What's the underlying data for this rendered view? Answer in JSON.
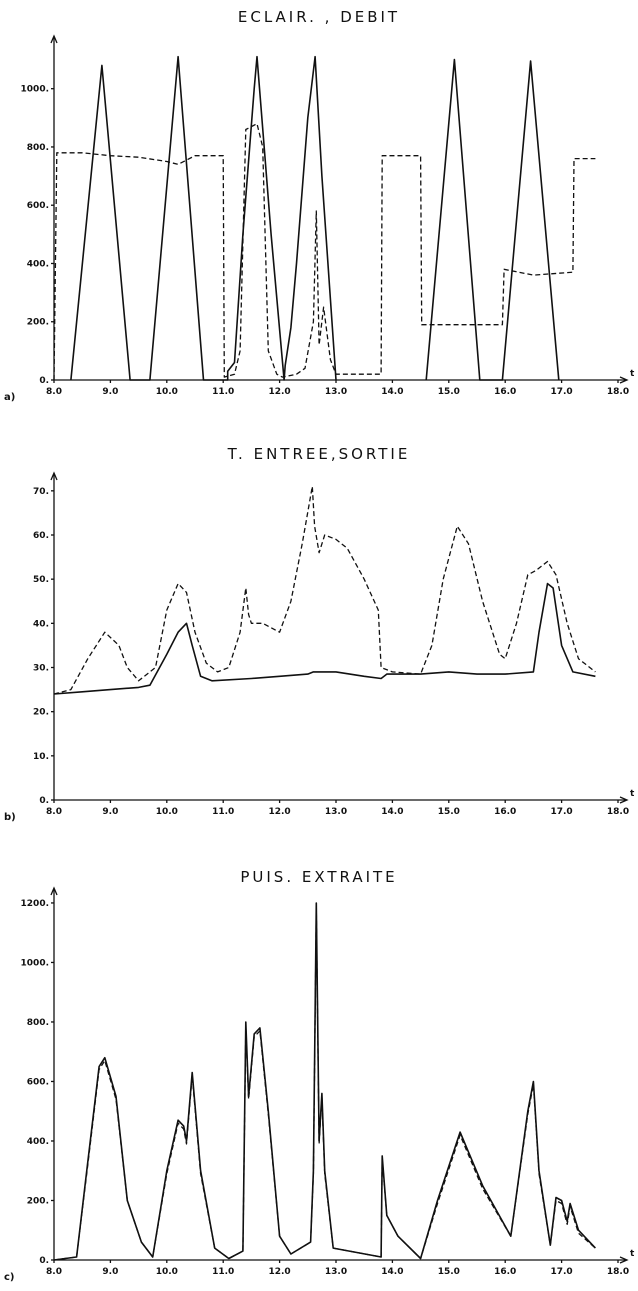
{
  "chart_data": [
    {
      "type": "line",
      "panel_label": "a)",
      "title": "ECLAIR. , DEBIT",
      "xlabel": "t",
      "ylabel": "",
      "xlim": [
        8,
        18
      ],
      "ylim": [
        0,
        1150
      ],
      "xticks": [
        "8.0",
        "9.0",
        "10.0",
        "11.0",
        "12.0",
        "13.0",
        "14.0",
        "15.0",
        "16.0",
        "17.0",
        "18.0"
      ],
      "yticks": [
        {
          "value": 0,
          "label": "0."
        },
        {
          "value": 200,
          "label": "200."
        },
        {
          "value": 400,
          "label": "400."
        },
        {
          "value": 600,
          "label": "600."
        },
        {
          "value": 800,
          "label": "800."
        },
        {
          "value": 1000,
          "label": "1000."
        }
      ],
      "series": [
        {
          "style": "solid",
          "points": [
            [
              8.3,
              0
            ],
            [
              8.85,
              1080
            ],
            [
              9.35,
              0
            ],
            [
              9.7,
              0
            ],
            [
              10.2,
              1110
            ],
            [
              10.65,
              0
            ],
            [
              11.08,
              0
            ],
            [
              11.08,
              30
            ],
            [
              11.2,
              60
            ],
            [
              11.35,
              500
            ],
            [
              11.55,
              1000
            ],
            [
              11.6,
              1110
            ],
            [
              11.85,
              500
            ],
            [
              12.08,
              0
            ],
            [
              12.1,
              50
            ],
            [
              12.2,
              180
            ],
            [
              12.3,
              400
            ],
            [
              12.5,
              900
            ],
            [
              12.63,
              1110
            ],
            [
              12.75,
              700
            ],
            [
              13.0,
              0
            ]
          ]
        },
        {
          "style": "solid",
          "points": [
            [
              14.6,
              0
            ],
            [
              15.1,
              1100
            ],
            [
              15.55,
              0
            ],
            [
              15.95,
              0
            ],
            [
              16.45,
              1095
            ],
            [
              16.95,
              0
            ]
          ]
        },
        {
          "style": "dashed",
          "points": [
            [
              8.0,
              0
            ],
            [
              8.05,
              780
            ],
            [
              8.5,
              780
            ],
            [
              9.0,
              770
            ],
            [
              9.5,
              765
            ],
            [
              10.0,
              750
            ],
            [
              10.2,
              740
            ],
            [
              10.5,
              770
            ],
            [
              11.0,
              770
            ],
            [
              11.02,
              10
            ],
            [
              11.2,
              20
            ],
            [
              11.3,
              100
            ],
            [
              11.4,
              860
            ],
            [
              11.6,
              880
            ],
            [
              11.7,
              800
            ],
            [
              11.8,
              100
            ],
            [
              11.95,
              20
            ],
            [
              12.05,
              10
            ],
            [
              12.3,
              20
            ],
            [
              12.45,
              40
            ],
            [
              12.6,
              200
            ],
            [
              12.65,
              580
            ],
            [
              12.7,
              120
            ],
            [
              12.78,
              250
            ],
            [
              12.9,
              70
            ],
            [
              13.0,
              20
            ],
            [
              13.8,
              20
            ],
            [
              13.82,
              770
            ],
            [
              14.5,
              770
            ],
            [
              14.52,
              190
            ],
            [
              15.0,
              190
            ],
            [
              15.95,
              190
            ],
            [
              15.98,
              380
            ],
            [
              16.5,
              360
            ],
            [
              17.2,
              370
            ],
            [
              17.22,
              760
            ],
            [
              17.6,
              760
            ]
          ]
        }
      ]
    },
    {
      "type": "line",
      "panel_label": "b)",
      "title": "T. ENTREE,SORTIE",
      "xlabel": "t",
      "ylabel": "",
      "xlim": [
        8,
        18
      ],
      "ylim": [
        0,
        72
      ],
      "xticks": [
        "8.0",
        "9.0",
        "10.0",
        "11.0",
        "12.0",
        "13.0",
        "14.0",
        "15.0",
        "16.0",
        "17.0",
        "18.0"
      ],
      "yticks": [
        {
          "value": 0,
          "label": "0."
        },
        {
          "value": 10,
          "label": "10."
        },
        {
          "value": 20,
          "label": "20."
        },
        {
          "value": 30,
          "label": "30."
        },
        {
          "value": 40,
          "label": "40."
        },
        {
          "value": 50,
          "label": "50."
        },
        {
          "value": 60,
          "label": "60."
        },
        {
          "value": 70,
          "label": "70."
        }
      ],
      "series": [
        {
          "style": "solid",
          "points": [
            [
              8.0,
              24
            ],
            [
              8.5,
              24.5
            ],
            [
              9.0,
              25
            ],
            [
              9.5,
              25.5
            ],
            [
              9.7,
              26
            ],
            [
              10.0,
              33
            ],
            [
              10.2,
              38
            ],
            [
              10.35,
              40
            ],
            [
              10.45,
              35
            ],
            [
              10.6,
              28
            ],
            [
              10.8,
              27
            ],
            [
              11.5,
              27.5
            ],
            [
              12.0,
              28
            ],
            [
              12.5,
              28.5
            ],
            [
              12.6,
              29
            ],
            [
              13.0,
              29
            ],
            [
              13.5,
              28
            ],
            [
              13.8,
              27.5
            ],
            [
              13.9,
              28.5
            ],
            [
              14.5,
              28.5
            ],
            [
              15.0,
              29
            ],
            [
              15.5,
              28.5
            ],
            [
              16.0,
              28.5
            ],
            [
              16.5,
              29
            ],
            [
              16.6,
              38
            ],
            [
              16.75,
              49
            ],
            [
              16.85,
              48
            ],
            [
              17.0,
              35
            ],
            [
              17.2,
              29
            ],
            [
              17.6,
              28
            ]
          ]
        },
        {
          "style": "dashed",
          "points": [
            [
              8.0,
              24
            ],
            [
              8.3,
              25
            ],
            [
              8.6,
              32
            ],
            [
              8.9,
              38
            ],
            [
              9.15,
              35
            ],
            [
              9.3,
              30
            ],
            [
              9.5,
              27
            ],
            [
              9.8,
              30
            ],
            [
              10.0,
              43
            ],
            [
              10.2,
              49
            ],
            [
              10.35,
              47
            ],
            [
              10.5,
              38
            ],
            [
              10.7,
              31
            ],
            [
              10.9,
              29
            ],
            [
              11.1,
              30
            ],
            [
              11.3,
              38
            ],
            [
              11.4,
              48
            ],
            [
              11.45,
              42
            ],
            [
              11.5,
              40
            ],
            [
              11.7,
              40
            ],
            [
              12.0,
              38
            ],
            [
              12.2,
              45
            ],
            [
              12.4,
              58
            ],
            [
              12.58,
              71
            ],
            [
              12.62,
              62
            ],
            [
              12.7,
              56
            ],
            [
              12.8,
              60
            ],
            [
              13.0,
              59
            ],
            [
              13.2,
              57
            ],
            [
              13.5,
              50
            ],
            [
              13.75,
              43
            ],
            [
              13.8,
              30
            ],
            [
              14.0,
              29
            ],
            [
              14.5,
              28.5
            ],
            [
              14.7,
              35
            ],
            [
              14.9,
              50
            ],
            [
              15.15,
              62
            ],
            [
              15.35,
              58
            ],
            [
              15.6,
              45
            ],
            [
              15.9,
              33
            ],
            [
              16.0,
              32
            ],
            [
              16.2,
              40
            ],
            [
              16.4,
              51
            ],
            [
              16.55,
              52
            ],
            [
              16.75,
              54
            ],
            [
              16.9,
              51
            ],
            [
              17.1,
              40
            ],
            [
              17.3,
              32
            ],
            [
              17.6,
              29
            ]
          ]
        }
      ]
    },
    {
      "type": "line",
      "panel_label": "c)",
      "title": "PUIS. EXTRAITE",
      "xlabel": "t",
      "ylabel": "",
      "xlim": [
        8,
        18
      ],
      "ylim": [
        0,
        1220
      ],
      "xticks": [
        "8.0",
        "9.0",
        "10.0",
        "11.0",
        "12.0",
        "13.0",
        "14.0",
        "15.0",
        "16.0",
        "17.0",
        "18.0"
      ],
      "yticks": [
        {
          "value": 0,
          "label": "0."
        },
        {
          "value": 200,
          "label": "200."
        },
        {
          "value": 400,
          "label": "400."
        },
        {
          "value": 600,
          "label": "600."
        },
        {
          "value": 800,
          "label": "800."
        },
        {
          "value": 1000,
          "label": "1000."
        },
        {
          "value": 1200,
          "label": "1200."
        }
      ],
      "series": [
        {
          "style": "solid",
          "points": [
            [
              8.0,
              0
            ],
            [
              8.4,
              10
            ],
            [
              8.6,
              330
            ],
            [
              8.8,
              650
            ],
            [
              8.9,
              680
            ],
            [
              9.1,
              550
            ],
            [
              9.3,
              200
            ],
            [
              9.55,
              60
            ],
            [
              9.75,
              10
            ],
            [
              10.0,
              300
            ],
            [
              10.2,
              470
            ],
            [
              10.3,
              450
            ],
            [
              10.35,
              400
            ],
            [
              10.45,
              630
            ],
            [
              10.6,
              300
            ],
            [
              10.85,
              40
            ],
            [
              11.1,
              5
            ],
            [
              11.35,
              30
            ],
            [
              11.4,
              800
            ],
            [
              11.45,
              550
            ],
            [
              11.55,
              760
            ],
            [
              11.65,
              780
            ],
            [
              11.8,
              500
            ],
            [
              12.0,
              80
            ],
            [
              12.2,
              20
            ],
            [
              12.55,
              60
            ],
            [
              12.6,
              300
            ],
            [
              12.65,
              1200
            ],
            [
              12.7,
              400
            ],
            [
              12.75,
              560
            ],
            [
              12.8,
              300
            ],
            [
              12.95,
              40
            ],
            [
              13.8,
              10
            ],
            [
              13.82,
              350
            ],
            [
              13.9,
              150
            ],
            [
              14.1,
              80
            ],
            [
              14.5,
              5
            ],
            [
              14.8,
              200
            ],
            [
              15.2,
              430
            ],
            [
              15.6,
              250
            ],
            [
              16.1,
              80
            ],
            [
              16.4,
              500
            ],
            [
              16.5,
              600
            ],
            [
              16.6,
              300
            ],
            [
              16.8,
              50
            ],
            [
              16.9,
              210
            ],
            [
              17.0,
              200
            ],
            [
              17.1,
              130
            ],
            [
              17.15,
              190
            ],
            [
              17.3,
              100
            ],
            [
              17.6,
              40
            ]
          ]
        },
        {
          "style": "dashed",
          "points": [
            [
              8.0,
              0
            ],
            [
              8.4,
              10
            ],
            [
              8.6,
              320
            ],
            [
              8.8,
              640
            ],
            [
              8.9,
              670
            ],
            [
              9.1,
              540
            ],
            [
              9.3,
              200
            ],
            [
              9.55,
              60
            ],
            [
              9.75,
              10
            ],
            [
              10.0,
              290
            ],
            [
              10.2,
              460
            ],
            [
              10.3,
              440
            ],
            [
              10.35,
              390
            ],
            [
              10.45,
              620
            ],
            [
              10.6,
              290
            ],
            [
              10.85,
              40
            ],
            [
              11.1,
              5
            ],
            [
              11.35,
              30
            ],
            [
              11.4,
              780
            ],
            [
              11.45,
              540
            ],
            [
              11.55,
              750
            ],
            [
              11.65,
              770
            ],
            [
              11.8,
              490
            ],
            [
              12.0,
              80
            ],
            [
              12.2,
              20
            ],
            [
              12.55,
              60
            ],
            [
              12.6,
              290
            ],
            [
              12.65,
              1180
            ],
            [
              12.7,
              390
            ],
            [
              12.75,
              550
            ],
            [
              12.8,
              290
            ],
            [
              12.95,
              40
            ],
            [
              13.8,
              10
            ],
            [
              13.82,
              340
            ],
            [
              13.9,
              150
            ],
            [
              14.1,
              80
            ],
            [
              14.5,
              5
            ],
            [
              14.8,
              190
            ],
            [
              15.2,
              420
            ],
            [
              15.6,
              240
            ],
            [
              16.1,
              80
            ],
            [
              16.4,
              490
            ],
            [
              16.5,
              590
            ],
            [
              16.6,
              290
            ],
            [
              16.8,
              50
            ],
            [
              16.9,
              200
            ],
            [
              17.0,
              190
            ],
            [
              17.1,
              120
            ],
            [
              17.15,
              180
            ],
            [
              17.3,
              90
            ],
            [
              17.6,
              40
            ]
          ]
        }
      ]
    }
  ]
}
